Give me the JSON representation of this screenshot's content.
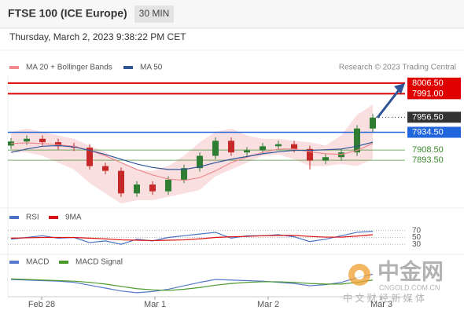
{
  "header": {
    "title": "FTSE 100 (ICE Europe)",
    "interval": "30 MIN",
    "timestamp": "Thursday, March 2, 2023 9:38:22 PM CET"
  },
  "chart_data": [
    {
      "type": "candlestick",
      "credit": "Research © 2023 Trading Central",
      "xlim": [
        -0.2,
        25.05
      ],
      "ylim": [
        7827,
        8019
      ],
      "up_color": "#2e7d32",
      "down_color": "#c62828",
      "candles": {
        "open": [
          7915,
          7921,
          7925,
          7920,
          7914,
          7912,
          7885,
          7878,
          7845,
          7858,
          7848,
          7865,
          7882,
          7900,
          7922,
          7905,
          7908,
          7914,
          7917,
          7910,
          7893,
          7898,
          7905,
          7940
        ],
        "high": [
          7926,
          7930,
          7930,
          7925,
          7919,
          7917,
          7890,
          7883,
          7863,
          7863,
          7870,
          7887,
          7905,
          7927,
          7927,
          7913,
          7919,
          7922,
          7922,
          7915,
          7903,
          7910,
          7945,
          7961
        ],
        "low": [
          7910,
          7916,
          7915,
          7909,
          7907,
          7880,
          7873,
          7840,
          7840,
          7843,
          7843,
          7860,
          7877,
          7895,
          7900,
          7900,
          7903,
          7909,
          7905,
          7880,
          7888,
          7893,
          7900,
          7935
        ],
        "close": [
          7921,
          7925,
          7920,
          7914,
          7912,
          7885,
          7878,
          7845,
          7858,
          7848,
          7865,
          7882,
          7900,
          7922,
          7905,
          7908,
          7914,
          7917,
          7910,
          7893,
          7898,
          7905,
          7940,
          7956
        ]
      },
      "bands": {
        "color": "#f7c9cc",
        "upper": [
          7935,
          7940,
          7935,
          7930,
          7925,
          7915,
          7905,
          7890,
          7880,
          7878,
          7885,
          7900,
          7920,
          7935,
          7940,
          7930,
          7925,
          7925,
          7922,
          7920,
          7915,
          7930,
          7960,
          7975
        ],
        "lower": [
          7905,
          7905,
          7900,
          7890,
          7880,
          7860,
          7845,
          7830,
          7835,
          7835,
          7840,
          7845,
          7850,
          7870,
          7880,
          7890,
          7900,
          7902,
          7895,
          7885,
          7885,
          7888,
          7885,
          7895
        ]
      },
      "series": [
        {
          "name": "MA 20 + Bollinger Bands",
          "color": "#f08a8f",
          "values": [
            7918,
            7919,
            7918,
            7916,
            7914,
            7908,
            7900,
            7890,
            7880,
            7872,
            7866,
            7864,
            7868,
            7878,
            7890,
            7898,
            7905,
            7910,
            7910,
            7906,
            7903,
            7902,
            7908,
            7918
          ]
        },
        {
          "name": "MA 50",
          "color": "#2f5597",
          "values": [
            7905,
            7910,
            7914,
            7915,
            7913,
            7908,
            7902,
            7895,
            7888,
            7883,
            7880,
            7880,
            7884,
            7890,
            7895,
            7899,
            7903,
            7906,
            7908,
            7908,
            7909,
            7910,
            7914,
            7920
          ]
        }
      ],
      "levels": [
        {
          "value": 8006.5,
          "label": "8006.50",
          "color": "#e00000",
          "boxed": true,
          "line": "solid"
        },
        {
          "value": 7991,
          "label": "7991.00",
          "color": "#e00000",
          "boxed": true,
          "line": "solid"
        },
        {
          "value": 7956.5,
          "label": "7956.50",
          "color": "#333333",
          "boxed": true,
          "line": "dotted"
        },
        {
          "value": 7934.5,
          "label": "7934.50",
          "color": "#2266dd",
          "boxed": true,
          "line": "solid"
        },
        {
          "value": 7908.5,
          "label": "7908.50",
          "color": "#3a8a2a",
          "boxed": false,
          "line": "thin"
        },
        {
          "value": 7893.5,
          "label": "7893.50",
          "color": "#3a8a2a",
          "boxed": false,
          "line": "thin"
        }
      ]
    },
    {
      "type": "line",
      "xlim": [
        -0.2,
        25.05
      ],
      "ylim": [
        10,
        90
      ],
      "yticks": [
        70,
        50,
        30
      ],
      "series": [
        {
          "name": "RSI",
          "color": "#4a72c4",
          "values": [
            45,
            50,
            55,
            48,
            50,
            35,
            40,
            30,
            45,
            40,
            50,
            55,
            60,
            65,
            48,
            55,
            55,
            58,
            52,
            38,
            45,
            55,
            65,
            68
          ]
        },
        {
          "name": "9MA",
          "color": "#dd1111",
          "values": [
            48,
            49,
            50,
            50,
            50,
            48,
            46,
            43,
            42,
            41,
            42,
            43,
            46,
            50,
            52,
            53,
            55,
            56,
            56,
            53,
            51,
            51,
            54,
            58
          ]
        }
      ]
    },
    {
      "type": "line",
      "xlim": [
        -0.2,
        25.05
      ],
      "ylim": [
        -25,
        20
      ],
      "xticks": [
        {
          "value": 1.95,
          "label": "Feb 28"
        },
        {
          "value": 9.15,
          "label": "Mar 1"
        },
        {
          "value": 16.35,
          "label": "Mar 2"
        },
        {
          "value": 23.55,
          "label": "Mar 3"
        }
      ],
      "series": [
        {
          "name": "MACD",
          "color": "#5577cc",
          "values": [
            5,
            4,
            3,
            2,
            0,
            -5,
            -10,
            -15,
            -18,
            -16,
            -12,
            -6,
            0,
            5,
            4,
            3,
            2,
            0,
            -2,
            -6,
            -4,
            0,
            8,
            14
          ]
        },
        {
          "name": "MACD Signal",
          "color": "#4a9a2a",
          "values": [
            6,
            5,
            4,
            3,
            2,
            0,
            -3,
            -7,
            -11,
            -13,
            -14,
            -12,
            -9,
            -5,
            -2,
            0,
            1,
            1,
            0,
            -2,
            -3,
            -3,
            0,
            4
          ]
        }
      ]
    }
  ],
  "watermark": {
    "brand": "中金网",
    "domain": "CNGOLD.COM.CN",
    "slogan": "中 文 财 经 新 媒 体"
  }
}
